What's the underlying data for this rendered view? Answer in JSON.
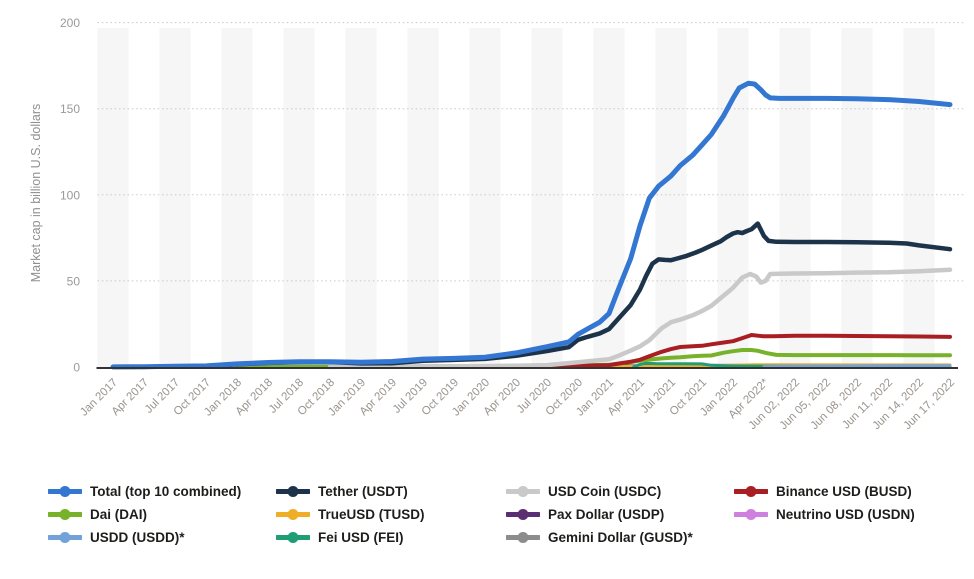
{
  "chart_data": {
    "type": "line",
    "title": "",
    "ylabel": "Market cap in billion U.S. dollars",
    "xlabel": "",
    "ylim": [
      0,
      200
    ],
    "yticks": [
      0,
      50,
      100,
      150,
      200
    ],
    "grid": "horizontal-dotted",
    "plot_background": "alternating-column-stripes",
    "legend_position": "bottom",
    "x_categories": [
      "Jan 2017",
      "Apr 2017",
      "Jul 2017",
      "Oct 2017",
      "Jan 2018",
      "Apr 2018",
      "Jul 2018",
      "Oct 2018",
      "Jan 2019",
      "Apr 2019",
      "Jul 2019",
      "Oct 2019",
      "Jan 2020",
      "Apr 2020",
      "Jul 2020",
      "Oct 2020",
      "Jan 2021",
      "Apr 2021",
      "Jul 2021",
      "Oct 2021",
      "Jan 2022",
      "Apr 2022*",
      "Jun 02, 2022",
      "Jun 05, 2022",
      "Jun 08, 2022",
      "Jun 11, 2022",
      "Jun 14, 2022",
      "Jun 17, 2022"
    ],
    "legend_order": [
      "total",
      "tether",
      "usdc",
      "busd",
      "dai",
      "tusd",
      "usdp",
      "usdn",
      "usdd",
      "fei",
      "gusd"
    ],
    "draw_order": [
      "gusd",
      "usdn",
      "usdp",
      "tusd",
      "fei",
      "usdd",
      "dai",
      "busd",
      "usdc",
      "tether",
      "total"
    ],
    "series": [
      {
        "key": "total",
        "label": "Total (top 10 combined)",
        "color": "#3377d2",
        "line_width": 5,
        "points": [
          [
            0,
            0.05
          ],
          [
            1,
            0.15
          ],
          [
            2,
            0.45
          ],
          [
            3,
            0.65
          ],
          [
            4,
            1.8
          ],
          [
            5,
            2.6
          ],
          [
            6,
            3.1
          ],
          [
            7,
            3.0
          ],
          [
            8,
            2.8
          ],
          [
            9,
            3.2
          ],
          [
            10,
            4.6
          ],
          [
            11,
            5.0
          ],
          [
            12,
            5.7
          ],
          [
            13,
            8.2
          ],
          [
            14,
            11.8
          ],
          [
            14.7,
            14.5
          ],
          [
            15,
            19
          ],
          [
            15.3,
            22
          ],
          [
            15.7,
            26
          ],
          [
            16,
            31
          ],
          [
            16.3,
            45
          ],
          [
            16.7,
            63
          ],
          [
            17,
            82
          ],
          [
            17.3,
            98
          ],
          [
            17.6,
            105
          ],
          [
            18,
            111
          ],
          [
            18.3,
            117
          ],
          [
            18.7,
            123
          ],
          [
            19,
            129
          ],
          [
            19.3,
            135
          ],
          [
            19.7,
            146
          ],
          [
            20,
            156
          ],
          [
            20.2,
            162
          ],
          [
            20.5,
            164.8
          ],
          [
            20.7,
            164.3
          ],
          [
            20.9,
            161
          ],
          [
            21.05,
            158
          ],
          [
            21.2,
            156.3
          ],
          [
            21.5,
            156
          ],
          [
            22,
            156
          ],
          [
            23,
            156
          ],
          [
            24,
            155.8
          ],
          [
            25,
            155.3
          ],
          [
            26,
            154.2
          ],
          [
            27,
            152.4
          ]
        ]
      },
      {
        "key": "tether",
        "label": "Tether (USDT)",
        "color": "#1d3349",
        "line_width": 4.5,
        "points": [
          [
            0,
            0.01
          ],
          [
            1,
            0.08
          ],
          [
            2,
            0.32
          ],
          [
            3,
            0.5
          ],
          [
            4,
            1.5
          ],
          [
            5,
            2.4
          ],
          [
            6,
            2.8
          ],
          [
            7,
            2.9
          ],
          [
            8,
            2.1
          ],
          [
            9,
            2.2
          ],
          [
            10,
            3.6
          ],
          [
            11,
            4.1
          ],
          [
            12,
            4.7
          ],
          [
            13,
            6.5
          ],
          [
            14,
            9.3
          ],
          [
            14.7,
            11.5
          ],
          [
            15,
            15.8
          ],
          [
            15.3,
            17.5
          ],
          [
            15.7,
            19.5
          ],
          [
            16,
            22
          ],
          [
            16.3,
            28
          ],
          [
            16.7,
            36
          ],
          [
            17,
            45
          ],
          [
            17.2,
            53
          ],
          [
            17.4,
            60
          ],
          [
            17.6,
            62.5
          ],
          [
            17.8,
            62.2
          ],
          [
            18,
            62
          ],
          [
            18.2,
            63
          ],
          [
            18.5,
            64.5
          ],
          [
            18.8,
            66.5
          ],
          [
            19,
            68
          ],
          [
            19.3,
            70.5
          ],
          [
            19.6,
            73
          ],
          [
            19.8,
            75.5
          ],
          [
            20,
            77.5
          ],
          [
            20.15,
            78.3
          ],
          [
            20.3,
            77.8
          ],
          [
            20.45,
            79
          ],
          [
            20.6,
            80
          ],
          [
            20.8,
            83.3
          ],
          [
            21,
            76
          ],
          [
            21.15,
            73.2
          ],
          [
            21.4,
            72.7
          ],
          [
            22,
            72.6
          ],
          [
            23,
            72.6
          ],
          [
            24,
            72.5
          ],
          [
            25,
            72.2
          ],
          [
            25.6,
            71.7
          ],
          [
            26,
            70.6
          ],
          [
            27,
            68.4
          ]
        ]
      },
      {
        "key": "usdc",
        "label": "USD Coin (USDC)",
        "color": "#c9c9c9",
        "line_width": 4.5,
        "points": [
          [
            7,
            0.05
          ],
          [
            8,
            0.25
          ],
          [
            9,
            0.3
          ],
          [
            10,
            0.4
          ],
          [
            11,
            0.45
          ],
          [
            12,
            0.55
          ],
          [
            13,
            0.75
          ],
          [
            14,
            1.1
          ],
          [
            15,
            2.8
          ],
          [
            16,
            4.5
          ],
          [
            16.3,
            6.5
          ],
          [
            16.7,
            9.5
          ],
          [
            17,
            12
          ],
          [
            17.3,
            15.5
          ],
          [
            17.7,
            22.5
          ],
          [
            18,
            26
          ],
          [
            18.3,
            27.5
          ],
          [
            18.7,
            30
          ],
          [
            19,
            32.5
          ],
          [
            19.3,
            35.5
          ],
          [
            19.6,
            40
          ],
          [
            19.8,
            43
          ],
          [
            20,
            46
          ],
          [
            20.3,
            52
          ],
          [
            20.55,
            54
          ],
          [
            20.75,
            52.5
          ],
          [
            20.9,
            49
          ],
          [
            21.05,
            50
          ],
          [
            21.2,
            54
          ],
          [
            21.5,
            54.2
          ],
          [
            22,
            54.3
          ],
          [
            23,
            54.5
          ],
          [
            24,
            54.8
          ],
          [
            25,
            55
          ],
          [
            26,
            55.6
          ],
          [
            27,
            56.5
          ]
        ]
      },
      {
        "key": "busd",
        "label": "Binance USD (BUSD)",
        "color": "#a91e22",
        "line_width": 4,
        "points": [
          [
            11,
            0.02
          ],
          [
            12,
            0.05
          ],
          [
            13,
            0.2
          ],
          [
            14,
            0.3
          ],
          [
            15,
            0.65
          ],
          [
            16,
            1.1
          ],
          [
            16.3,
            2
          ],
          [
            16.7,
            3.1
          ],
          [
            17,
            4.2
          ],
          [
            17.3,
            6.2
          ],
          [
            17.7,
            8.8
          ],
          [
            18,
            10.4
          ],
          [
            18.3,
            11.6
          ],
          [
            18.7,
            12
          ],
          [
            19,
            12.3
          ],
          [
            19.3,
            13.2
          ],
          [
            19.7,
            14.2
          ],
          [
            20,
            15
          ],
          [
            20.3,
            16.8
          ],
          [
            20.6,
            18.6
          ],
          [
            20.8,
            18.2
          ],
          [
            21,
            17.8
          ],
          [
            21.3,
            17.9
          ],
          [
            22,
            18.1
          ],
          [
            23,
            18.1
          ],
          [
            24,
            18
          ],
          [
            25,
            17.9
          ],
          [
            26,
            17.7
          ],
          [
            27,
            17.5
          ]
        ]
      },
      {
        "key": "dai",
        "label": "Dai (DAI)",
        "color": "#77b22a",
        "line_width": 4,
        "points": [
          [
            4,
            0.01
          ],
          [
            8,
            0.09
          ],
          [
            12,
            0.12
          ],
          [
            13,
            0.12
          ],
          [
            14,
            0.25
          ],
          [
            15,
            0.95
          ],
          [
            16,
            1.3
          ],
          [
            16.7,
            2.8
          ],
          [
            17,
            3.8
          ],
          [
            17.7,
            5
          ],
          [
            18,
            5.4
          ],
          [
            18.3,
            5.7
          ],
          [
            18.7,
            6.3
          ],
          [
            19,
            6.5
          ],
          [
            19.3,
            6.7
          ],
          [
            19.7,
            8.3
          ],
          [
            20,
            9.2
          ],
          [
            20.3,
            9.9
          ],
          [
            20.6,
            9.9
          ],
          [
            20.8,
            9.4
          ],
          [
            21.1,
            8
          ],
          [
            21.4,
            7
          ],
          [
            22,
            6.9
          ],
          [
            23,
            6.9
          ],
          [
            24,
            6.9
          ],
          [
            25,
            6.9
          ],
          [
            26,
            6.8
          ],
          [
            27,
            6.8
          ]
        ]
      },
      {
        "key": "tusd",
        "label": "TrueUSD (TUSD)",
        "color": "#efae27",
        "line_width": 3,
        "points": [
          [
            4,
            0.03
          ],
          [
            5,
            0.1
          ],
          [
            6,
            0.1
          ],
          [
            7,
            0.15
          ],
          [
            8,
            0.2
          ],
          [
            10,
            0.22
          ],
          [
            12,
            0.15
          ],
          [
            14,
            0.15
          ],
          [
            16,
            0.3
          ],
          [
            17,
            0.32
          ],
          [
            18,
            0.45
          ],
          [
            19,
            0.6
          ],
          [
            20,
            1.0
          ],
          [
            20.7,
            1.3
          ],
          [
            21,
            1.35
          ],
          [
            22,
            1.25
          ],
          [
            24,
            1.22
          ],
          [
            27,
            1.2
          ]
        ]
      },
      {
        "key": "usdp",
        "label": "Pax Dollar (USDP)",
        "color": "#5b2d71",
        "line_width": 3,
        "points": [
          [
            7,
            0.03
          ],
          [
            8,
            0.12
          ],
          [
            10,
            0.2
          ],
          [
            12,
            0.22
          ],
          [
            14,
            0.27
          ],
          [
            16,
            0.5
          ],
          [
            17,
            0.72
          ],
          [
            18,
            0.85
          ],
          [
            19,
            0.95
          ],
          [
            20,
            0.95
          ],
          [
            21,
            0.9
          ],
          [
            22,
            0.75
          ],
          [
            24,
            0.7
          ],
          [
            27,
            0.66
          ]
        ]
      },
      {
        "key": "usdn",
        "label": "Neutrino USD (USDN)",
        "color": "#cf7fdd",
        "line_width": 3,
        "points": [
          [
            15,
            0.05
          ],
          [
            16,
            0.12
          ],
          [
            17,
            0.32
          ],
          [
            18,
            0.42
          ],
          [
            19,
            0.52
          ],
          [
            20,
            0.82
          ],
          [
            20.7,
            0.9
          ],
          [
            21,
            0.88
          ],
          [
            21.4,
            0.75
          ],
          [
            22,
            0.7
          ],
          [
            24,
            0.68
          ],
          [
            27,
            0.65
          ]
        ]
      },
      {
        "key": "usdd",
        "label": "USDD (USDD)*",
        "color": "#71a3da",
        "line_width": 3,
        "points": [
          [
            21,
            0.28
          ],
          [
            21.5,
            0.45
          ],
          [
            22,
            0.55
          ],
          [
            23,
            0.6
          ],
          [
            24,
            0.64
          ],
          [
            25,
            0.67
          ],
          [
            26,
            0.69
          ],
          [
            27,
            0.7
          ]
        ]
      },
      {
        "key": "fei",
        "label": "Fei USD (FEI)",
        "color": "#1f9d74",
        "line_width": 3,
        "points": [
          [
            16.8,
            0.1
          ],
          [
            17,
            1.5
          ],
          [
            17.2,
            2.2
          ],
          [
            17.5,
            2.0
          ],
          [
            18,
            1.9
          ],
          [
            18.5,
            1.9
          ],
          [
            19,
            1.8
          ],
          [
            19.3,
            1.0
          ],
          [
            19.7,
            0.7
          ],
          [
            20,
            0.6
          ],
          [
            21,
            0.5
          ],
          [
            22,
            0.45
          ],
          [
            24,
            0.42
          ],
          [
            27,
            0.4
          ]
        ]
      },
      {
        "key": "gusd",
        "label": "Gemini Dollar (GUSD)*",
        "color": "#8c8c8c",
        "line_width": 3,
        "points": [
          [
            7,
            0.06
          ],
          [
            8,
            0.1
          ],
          [
            10,
            0.1
          ],
          [
            12,
            0.1
          ],
          [
            14,
            0.1
          ],
          [
            16,
            0.12
          ],
          [
            17,
            0.16
          ],
          [
            18,
            0.2
          ],
          [
            19,
            0.26
          ],
          [
            20,
            0.3
          ],
          [
            21,
            0.26
          ],
          [
            22,
            0.22
          ],
          [
            24,
            0.21
          ],
          [
            27,
            0.2
          ]
        ]
      }
    ],
    "style": {
      "stripe_color": "#f6f6f6",
      "grid_color": "#c8c8c8",
      "axis_color": "#333333",
      "tick_label_color": "#9a938d",
      "y_label_color": "#9a9a9a"
    }
  }
}
